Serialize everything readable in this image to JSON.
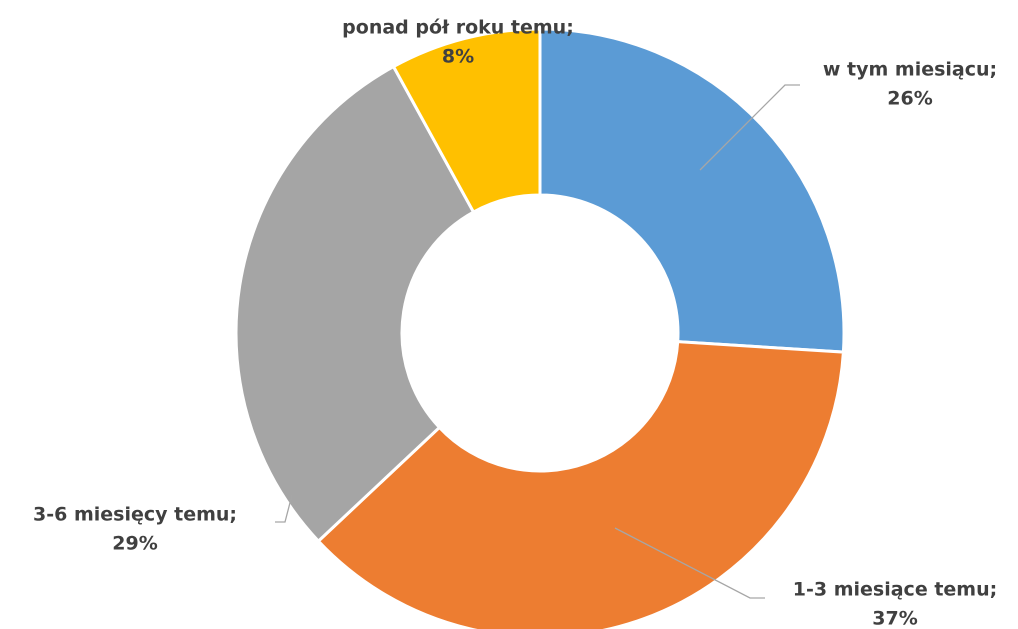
{
  "chart_data": {
    "type": "donut",
    "categories": [
      "w tym miesiącu;",
      "1-3 miesiące temu;",
      "3-6 miesięcy temu;",
      "ponad pół roku temu;"
    ],
    "values": [
      26,
      37,
      29,
      8
    ],
    "value_labels": [
      "26%",
      "37%",
      "29%",
      "8%"
    ],
    "colors": [
      "#5b9bd5",
      "#ed7d31",
      "#a5a5a5",
      "#ffc000"
    ]
  }
}
